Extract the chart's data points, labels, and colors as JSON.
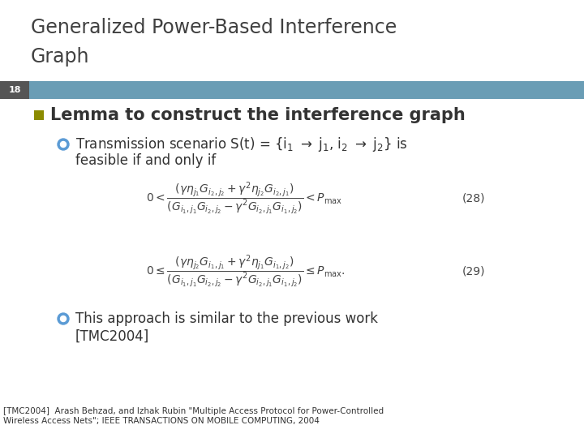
{
  "title_line1": "Generalized Power-Based Interference",
  "title_line2": "Graph",
  "slide_number": "18",
  "bg_color": "#ffffff",
  "header_bar_color": "#6a9db5",
  "slide_num_bg": "#555555",
  "slide_num_color": "#ffffff",
  "title_color": "#404040",
  "title_fontsize": 17,
  "bullet1_text": "Lemma to construct the interference graph",
  "bullet1_color": "#333333",
  "bullet1_fontsize": 15,
  "bullet1_marker_color": "#8B8B00",
  "sub_bullet_color": "#333333",
  "sub_bullet_fontsize": 12,
  "sub_bullet_marker_color": "#5b9bd5",
  "eq28_label": "(28)",
  "eq29_label": "(29)",
  "footnote_text": "[TMC2004]  Arash Behzad, and Izhak Rubin \"Multiple Access Protocol for Power-Controlled\nWireless Access Nets\"; IEEE TRANSACTIONS ON MOBILE COMPUTING, 2004",
  "footnote_fontsize": 7.5,
  "footnote_color": "#333333"
}
